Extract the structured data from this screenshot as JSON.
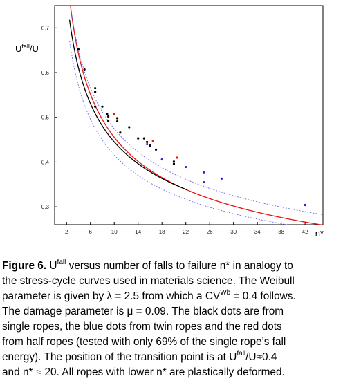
{
  "chart_data": {
    "type": "scatter",
    "title": "",
    "xlabel": "n*",
    "ylabel_main": "U",
    "ylabel_sup": "fall",
    "ylabel_tail": "/U",
    "xlim": [
      0,
      45
    ],
    "ylim": [
      0.26,
      0.75
    ],
    "x_ticks": [
      2,
      6,
      10,
      14,
      18,
      22,
      26,
      30,
      34,
      38,
      42
    ],
    "y_ticks": [
      0.3,
      0.4,
      0.5,
      0.6,
      0.7
    ],
    "y_tick_labels": [
      "0.3",
      "0.4",
      "0.5",
      "0.6",
      "0.7"
    ],
    "grid": false,
    "colors": {
      "black": "#000000",
      "blue": "#2020dd",
      "red": "#e81010"
    },
    "series": [
      {
        "color": "#000000",
        "points": [
          [
            4,
            0.652
          ],
          [
            5,
            0.607
          ],
          [
            6.8,
            0.565
          ],
          [
            6.8,
            0.557
          ],
          [
            6.8,
            0.524
          ],
          [
            8,
            0.524
          ],
          [
            8.8,
            0.507
          ],
          [
            9,
            0.502
          ],
          [
            9,
            0.492
          ],
          [
            10.5,
            0.498
          ],
          [
            10.5,
            0.491
          ],
          [
            11,
            0.466
          ],
          [
            12.5,
            0.478
          ],
          [
            14,
            0.453
          ],
          [
            15,
            0.453
          ],
          [
            15.5,
            0.445
          ],
          [
            16,
            0.437
          ],
          [
            17,
            0.428
          ],
          [
            20,
            0.401
          ],
          [
            20,
            0.396
          ]
        ]
      },
      {
        "color": "#2020dd",
        "points": [
          [
            15.5,
            0.44
          ],
          [
            18,
            0.406
          ],
          [
            22,
            0.389
          ],
          [
            25,
            0.377
          ],
          [
            25,
            0.355
          ],
          [
            28,
            0.363
          ],
          [
            42,
            0.304
          ]
        ]
      },
      {
        "color": "#e81010",
        "points": [
          [
            10,
            0.508
          ],
          [
            16.5,
            0.447
          ],
          [
            20.5,
            0.41
          ]
        ]
      }
    ]
  },
  "caption": {
    "figure_label": "Figure 6.",
    "line1_a": " U",
    "line1_sup": "fall",
    "line1_b": " versus number of falls to failure n* in analogy to",
    "line2": "the stress-cycle curves used in materials science. The Weibull",
    "line3_a": "parameter is given by λ = 2.5 from which a CV",
    "line3_sup": "Wb",
    "line3_b": " = 0.4 follows.",
    "line4": "The damage parameter is μ = 0.09. The black dots are from",
    "line5": "single ropes, the blue dots from twin ropes and the red dots",
    "line6": "from half ropes (tested with only 69% of the single rope’s fall",
    "line7": "energy). The position of the transition point is at U",
    "line7_sup": "fall",
    "line7_b": "/U≈0.4",
    "line8": "and n* ≈ 20. All ropes with lower n* are plastically deformed."
  }
}
